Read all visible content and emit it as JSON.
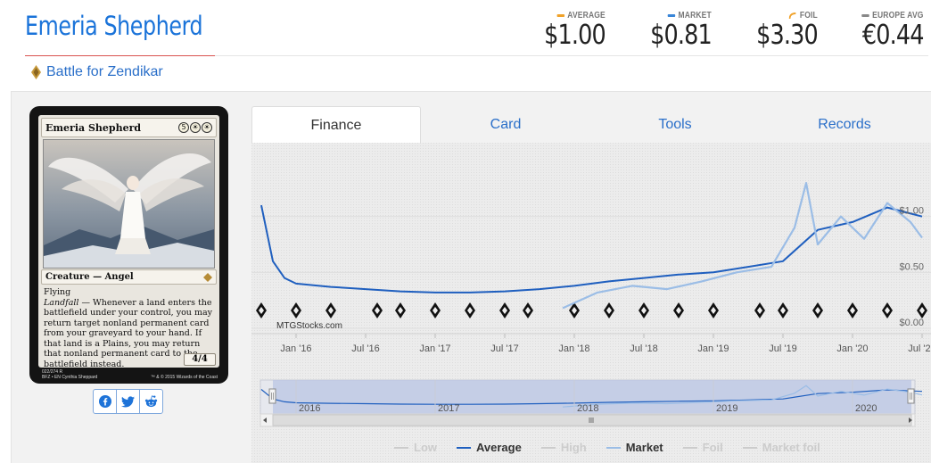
{
  "header": {
    "card_name": "Emeria Shepherd",
    "set_name": "Battle for Zendikar",
    "set_icon": "bfz-set-icon"
  },
  "prices": [
    {
      "label": "AVERAGE",
      "value": "$1.00",
      "color": "#f0a22a"
    },
    {
      "label": "MARKET",
      "value": "$0.81",
      "color": "#3a86d8"
    },
    {
      "label": "FOIL",
      "value": "$3.30",
      "color": "#f0a22a"
    },
    {
      "label": "EUROPE AVG",
      "value": "€0.44",
      "color": "#888888"
    }
  ],
  "card_image": {
    "name": "Emeria Shepherd",
    "cost": [
      "5",
      "☀",
      "☀"
    ],
    "type_line": "Creature — Angel",
    "keyword": "Flying",
    "ability_name": "Landfall",
    "ability_text": " — Whenever a land enters the battlefield under your control, you may return target nonland permanent card from your graveyard to your hand. If that land is a Plains, you may return that nonland permanent card to the battlefield instead.",
    "pt": "4/4",
    "collector": "022/274 R",
    "set_line": "BFZ • EN",
    "artist": "Cynthia Sheppard",
    "copyright": "™ & © 2015 Wizards of the Coast"
  },
  "share": [
    {
      "name": "facebook-icon"
    },
    {
      "name": "twitter-icon"
    },
    {
      "name": "reddit-icon"
    }
  ],
  "tabs": [
    {
      "label": "Finance",
      "active": true
    },
    {
      "label": "Card",
      "active": false
    },
    {
      "label": "Tools",
      "active": false
    },
    {
      "label": "Records",
      "active": false
    }
  ],
  "chart_data": {
    "type": "line",
    "title": "",
    "xlabel": "",
    "ylabel": "",
    "x_ticks": [
      "Jan '16",
      "Jul '16",
      "Jan '17",
      "Jul '17",
      "Jan '18",
      "Jul '18",
      "Jan '19",
      "Jul '19",
      "Jan '20",
      "Jul '20"
    ],
    "y_ticks": [
      "$0.00",
      "$0.50",
      "$1.00"
    ],
    "ylim": [
      0,
      1.5
    ],
    "navigator_ticks": [
      "2016",
      "2017",
      "2018",
      "2019",
      "2020"
    ],
    "watermark": "MTGStocks.com",
    "series": [
      {
        "name": "Average",
        "color": "#1f5fbf",
        "x": [
          "2015-10",
          "2015-11",
          "2015-12",
          "2016-01",
          "2016-04",
          "2016-07",
          "2016-10",
          "2017-01",
          "2017-04",
          "2017-07",
          "2017-10",
          "2018-01",
          "2018-04",
          "2018-07",
          "2018-10",
          "2019-01",
          "2019-04",
          "2019-07",
          "2019-10",
          "2020-01",
          "2020-04",
          "2020-07"
        ],
        "values": [
          1.1,
          0.6,
          0.45,
          0.4,
          0.37,
          0.35,
          0.33,
          0.32,
          0.32,
          0.33,
          0.35,
          0.38,
          0.42,
          0.45,
          0.48,
          0.5,
          0.55,
          0.6,
          0.88,
          0.95,
          1.08,
          1.0
        ]
      },
      {
        "name": "Market",
        "color": "#9bbde6",
        "x": [
          "2017-12",
          "2018-03",
          "2018-06",
          "2018-09",
          "2018-12",
          "2019-03",
          "2019-06",
          "2019-08",
          "2019-09",
          "2019-10",
          "2019-12",
          "2020-02",
          "2020-04",
          "2020-06",
          "2020-07"
        ],
        "values": [
          0.18,
          0.32,
          0.38,
          0.35,
          0.42,
          0.5,
          0.55,
          0.9,
          1.3,
          0.75,
          1.0,
          0.8,
          1.12,
          0.95,
          0.81
        ]
      }
    ],
    "set_icons": [
      "bfz",
      "ogw",
      "soi",
      "emn",
      "kld",
      "aer",
      "akh",
      "hou",
      "xln",
      "rix",
      "dom",
      "m19",
      "grn",
      "rna",
      "war",
      "m20",
      "eld",
      "thb",
      "iko",
      "m21"
    ],
    "legend": [
      {
        "name": "Low",
        "color": "#cccccc",
        "active": false
      },
      {
        "name": "Average",
        "color": "#1f5fbf",
        "active": true
      },
      {
        "name": "High",
        "color": "#cccccc",
        "active": false
      },
      {
        "name": "Market",
        "color": "#9bbde6",
        "active": true
      },
      {
        "name": "Foil",
        "color": "#cccccc",
        "active": false
      },
      {
        "name": "Market foil",
        "color": "#cccccc",
        "active": false
      }
    ],
    "legend_position": "bottom"
  }
}
